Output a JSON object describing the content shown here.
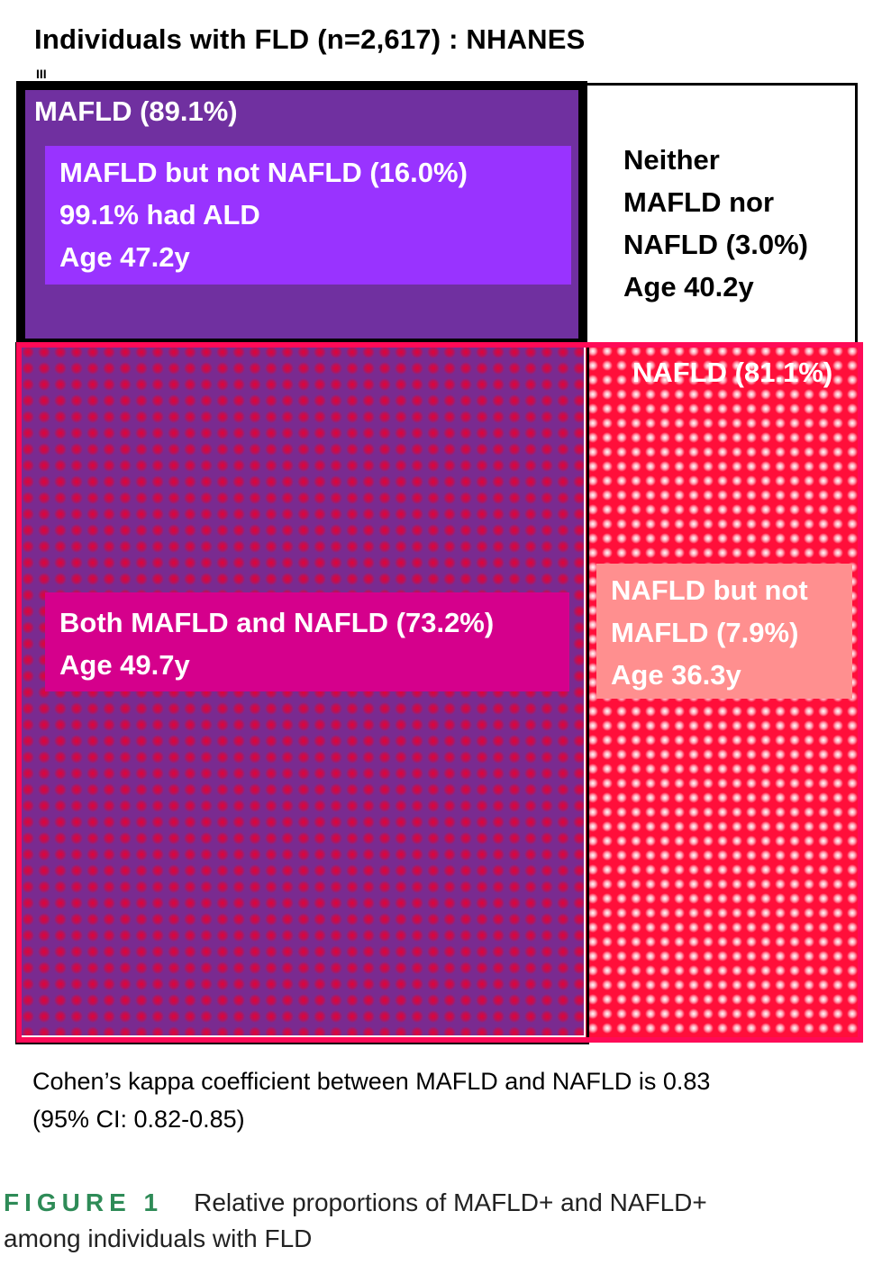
{
  "title": "Individuals with FLD (n=2,617) : NHANES",
  "title_mark": "III",
  "regions": {
    "mafld": {
      "label": "MAFLD (89.1%)",
      "value_percent": 89.1,
      "color": "#7030a0"
    },
    "mafld_only": {
      "line1": "MAFLD but not NAFLD (16.0%)",
      "line2": "99.1% had ALD",
      "line3": "Age 47.2y",
      "color": "#9933ff"
    },
    "neither": {
      "line1": "Neither",
      "line2": "MAFLD nor",
      "line3": "NAFLD (3.0%)",
      "line4": "Age 40.2y"
    },
    "nafld": {
      "label": "NAFLD (81.1%)",
      "value_percent": 81.1,
      "color": "#ff0a57"
    },
    "both": {
      "line1": "Both MAFLD and NAFLD (73.2%)",
      "line2": "Age 49.7y",
      "color": "#d5008c"
    },
    "nafld_only": {
      "line1": "NAFLD but not",
      "line2": "MAFLD (7.9%)",
      "line3": "Age 36.3y",
      "color": "#ff8f8f"
    }
  },
  "kappa": {
    "line1": "Cohen’s kappa coefficient between MAFLD and NAFLD is 0.83",
    "line2": "(95% CI: 0.82-0.85)"
  },
  "caption": {
    "figure_label": "FIGURE 1",
    "line1": "Relative proportions of MAFLD+ and NAFLD+",
    "line2": "among individuals with FLD"
  }
}
